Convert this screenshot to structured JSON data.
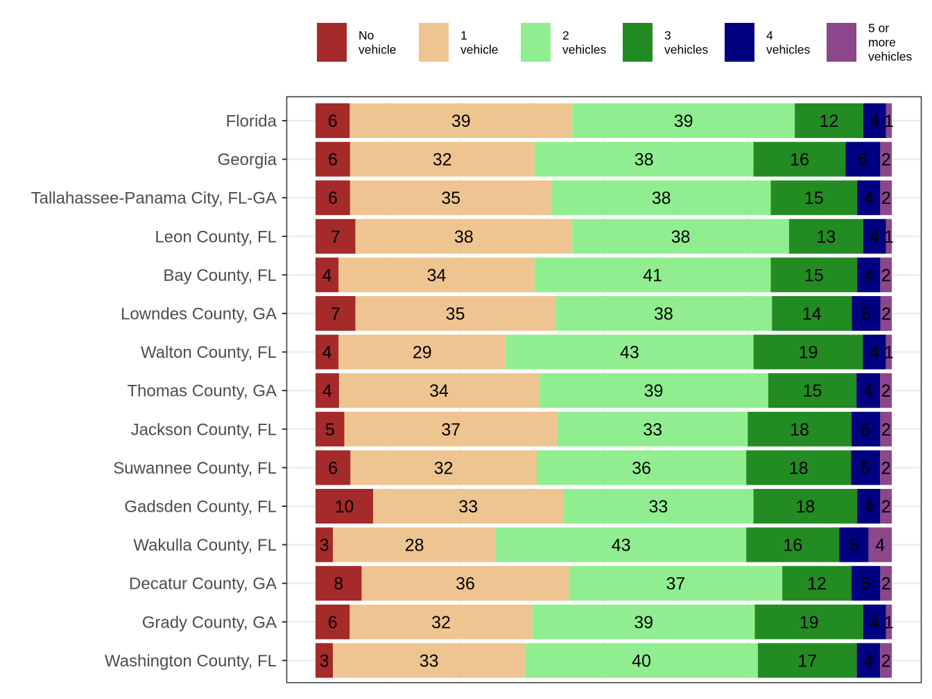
{
  "chart_data": {
    "type": "bar",
    "orientation": "horizontal",
    "stacked": true,
    "percent": true,
    "title": "",
    "xlabel": "",
    "ylabel": "",
    "xlim": [
      0,
      100
    ],
    "grid": true,
    "legend_position": "top-right",
    "categories": [
      "Florida",
      "Georgia",
      "Tallahassee-Panama City, FL-GA",
      "Leon County, FL",
      "Bay County, FL",
      "Lowndes County, GA",
      "Walton County, FL",
      "Thomas County, GA",
      "Jackson County, FL",
      "Suwannee County, FL",
      "Gadsden County, FL",
      "Wakulla County, FL",
      "Decatur County, GA",
      "Grady County, GA",
      "Washington County, FL"
    ],
    "series": [
      {
        "name": "No vehicle",
        "legend_lines": [
          "No",
          "vehicle"
        ],
        "color": "#A52A2A",
        "values": [
          6,
          6,
          6,
          7,
          4,
          7,
          4,
          4,
          5,
          6,
          10,
          3,
          8,
          6,
          3
        ]
      },
      {
        "name": "1 vehicle",
        "legend_lines": [
          "1",
          "vehicle"
        ],
        "color": "#EEC591",
        "values": [
          39,
          32,
          35,
          38,
          34,
          35,
          29,
          34,
          37,
          32,
          33,
          28,
          36,
          32,
          33
        ]
      },
      {
        "name": "2 vehicles",
        "legend_lines": [
          "2",
          "vehicles"
        ],
        "color": "#90EE90",
        "values": [
          39,
          38,
          38,
          38,
          41,
          38,
          43,
          39,
          33,
          36,
          33,
          43,
          37,
          39,
          40
        ]
      },
      {
        "name": "3 vehicles",
        "legend_lines": [
          "3",
          "vehicles"
        ],
        "color": "#228B22",
        "values": [
          12,
          16,
          15,
          13,
          15,
          14,
          19,
          15,
          18,
          18,
          18,
          16,
          12,
          19,
          17
        ]
      },
      {
        "name": "4 vehicles",
        "legend_lines": [
          "4",
          "vehicles"
        ],
        "color": "#000080",
        "values": [
          4,
          6,
          4,
          4,
          4,
          5,
          4,
          4,
          5,
          5,
          4,
          5,
          5,
          4,
          4
        ]
      },
      {
        "name": "5 or more vehicles",
        "legend_lines": [
          "5 or",
          "more",
          "vehicles"
        ],
        "color": "#8B4789",
        "values": [
          1,
          2,
          2,
          1,
          2,
          2,
          1,
          2,
          2,
          2,
          2,
          4,
          2,
          1,
          2
        ]
      }
    ]
  }
}
